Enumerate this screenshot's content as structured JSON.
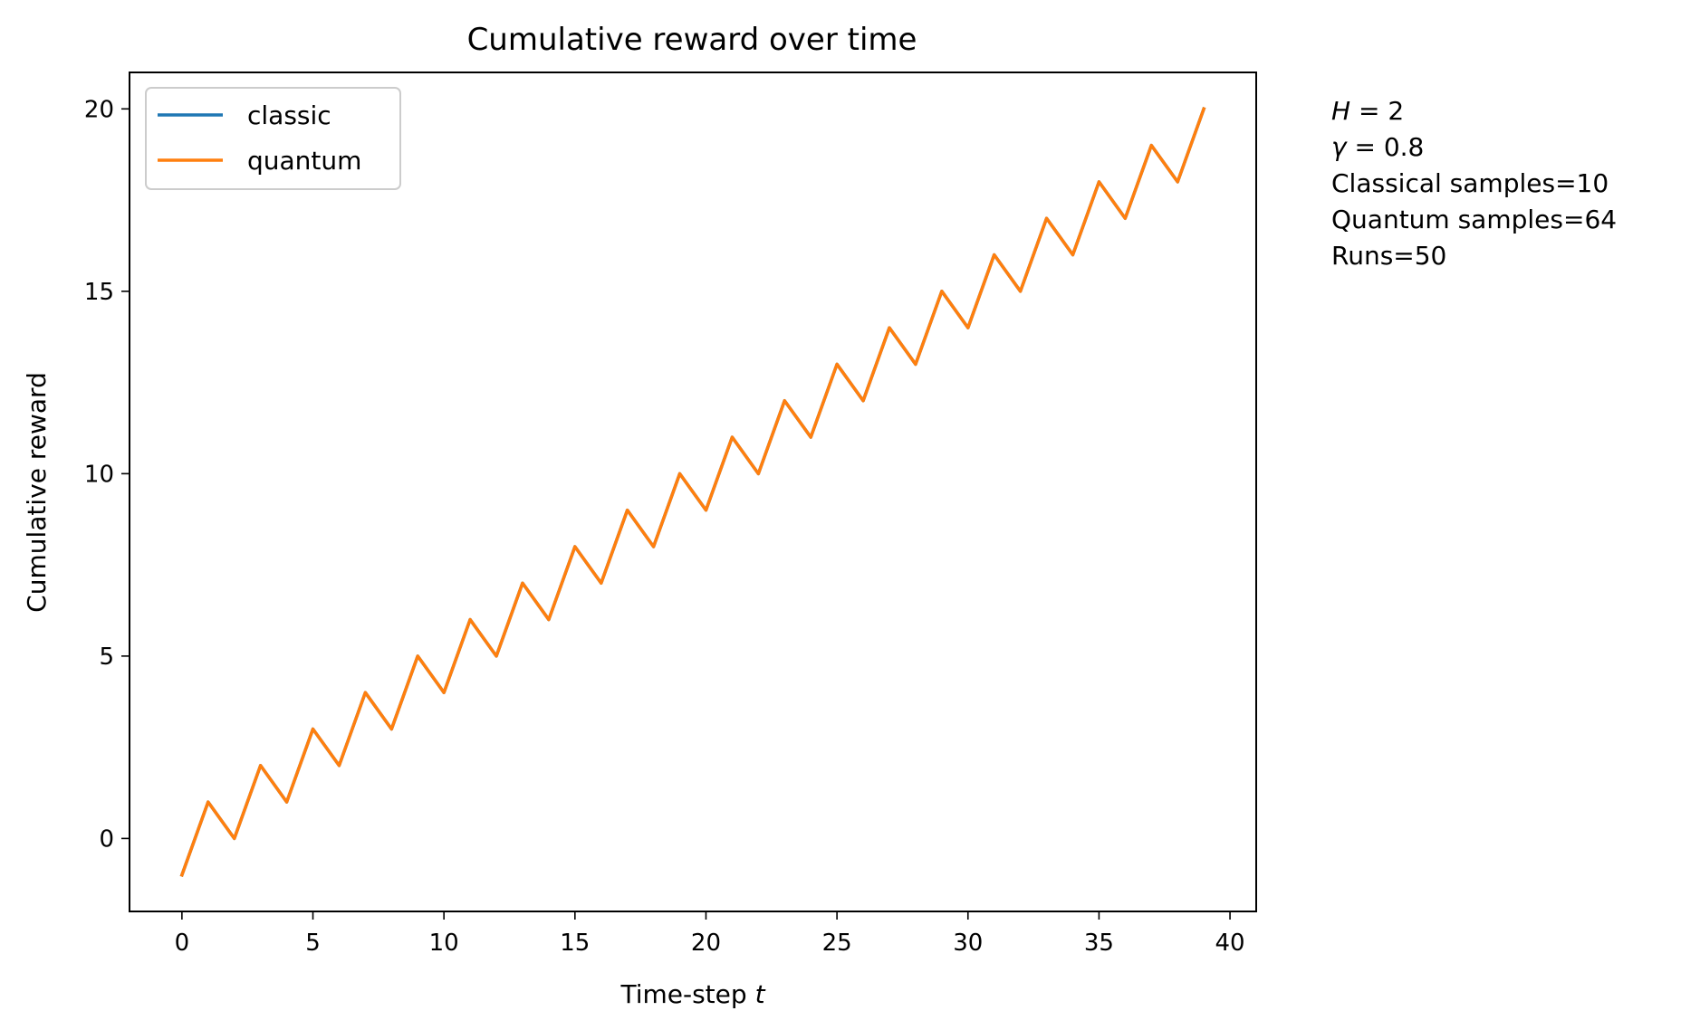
{
  "chart_data": {
    "type": "line",
    "title": "Cumulative reward over time",
    "xlabel": "Time-step",
    "xlabel_var": "t",
    "ylabel": "Cumulative reward",
    "xlim": [
      -2,
      41
    ],
    "ylim": [
      -2,
      21
    ],
    "xticks": [
      0,
      5,
      10,
      15,
      20,
      25,
      30,
      35,
      40
    ],
    "yticks": [
      0,
      5,
      10,
      15,
      20
    ],
    "xtick_labels": [
      "0",
      "5",
      "10",
      "15",
      "20",
      "25",
      "30",
      "35",
      "40"
    ],
    "ytick_labels": [
      "0",
      "5",
      "10",
      "15",
      "20"
    ],
    "grid": false,
    "legend_position": "upper-left",
    "x": [
      0,
      1,
      2,
      3,
      4,
      5,
      6,
      7,
      8,
      9,
      10,
      11,
      12,
      13,
      14,
      15,
      16,
      17,
      18,
      19,
      20,
      21,
      22,
      23,
      24,
      25,
      26,
      27,
      28,
      29,
      30,
      31,
      32,
      33,
      34,
      35,
      36,
      37,
      38,
      39
    ],
    "series": [
      {
        "name": "classic",
        "color": "#1f77b4",
        "values": [
          -1,
          1,
          0,
          2,
          1,
          3,
          2,
          4,
          3,
          5,
          4,
          6,
          5,
          7,
          6,
          8,
          7,
          9,
          8,
          10,
          9,
          11,
          10,
          12,
          11,
          13,
          12,
          14,
          13,
          15,
          14,
          16,
          15,
          17,
          16,
          18,
          17,
          19,
          18,
          20
        ]
      },
      {
        "name": "quantum",
        "color": "#ff7f0e",
        "values": [
          -1,
          1,
          0,
          2,
          1,
          3,
          2,
          4,
          3,
          5,
          4,
          6,
          5,
          7,
          6,
          8,
          7,
          9,
          8,
          10,
          9,
          11,
          10,
          12,
          11,
          13,
          12,
          14,
          13,
          15,
          14,
          16,
          15,
          17,
          16,
          18,
          17,
          19,
          18,
          20
        ]
      }
    ],
    "annotations": {
      "h_var": "H",
      "h_value": " = 2",
      "gamma_var": "γ",
      "gamma_value": " = 0.8",
      "classical_samples": "Classical samples=10",
      "quantum_samples": "Quantum samples=64",
      "runs": "Runs=50"
    }
  }
}
